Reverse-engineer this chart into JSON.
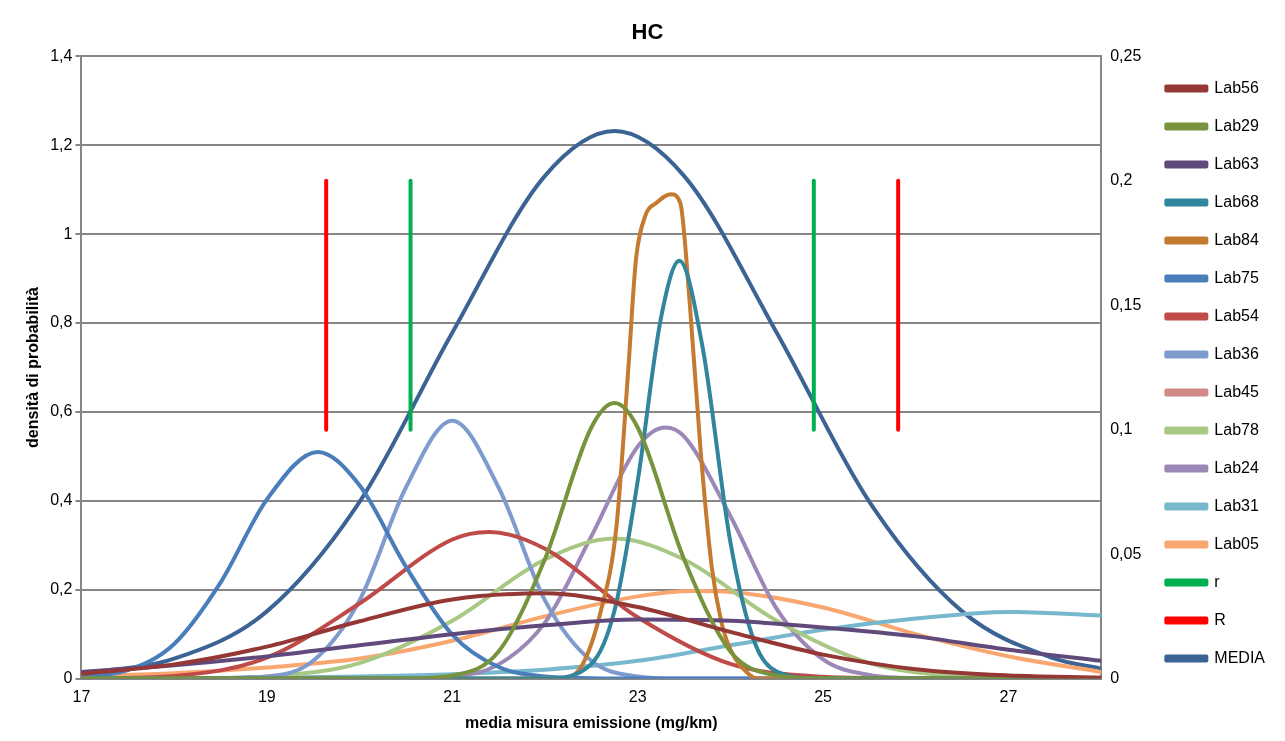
{
  "chart_data": {
    "type": "line",
    "title": "HC",
    "xlabel": "media misura emissione (mg/km)",
    "ylabel": "densità di probabilità",
    "xlim": [
      17,
      28
    ],
    "xticks": [
      17,
      19,
      21,
      23,
      25,
      27
    ],
    "ylim": [
      0,
      1.4
    ],
    "yticks": [
      0,
      {
        "value": 0.2,
        "label": "0,2"
      },
      {
        "value": 0.4,
        "label": "0,4"
      },
      {
        "value": 0.6,
        "label": "0,6"
      },
      {
        "value": 0.8,
        "label": "0,8"
      },
      1,
      {
        "value": 1.2,
        "label": "1,2"
      },
      {
        "value": 1.4,
        "label": "1,4"
      }
    ],
    "y2lim": [
      0,
      0.25
    ],
    "y2ticks": [
      0,
      {
        "value": 0.05,
        "label": "0,05"
      },
      {
        "value": 0.1,
        "label": "0,1"
      },
      {
        "value": 0.15,
        "label": "0,15"
      },
      {
        "value": 0.2,
        "label": "0,2"
      },
      {
        "value": 0.25,
        "label": "0,25"
      }
    ],
    "grid": "y",
    "legend": "right",
    "series": [
      {
        "name": "Lab56",
        "color": "#953735",
        "x": [
          17,
          18,
          19,
          20,
          21,
          22,
          23,
          24,
          25,
          26,
          27,
          28
        ],
        "values": [
          0.011,
          0.032,
          0.072,
          0.129,
          0.178,
          0.192,
          0.161,
          0.105,
          0.054,
          0.021,
          0.007,
          0.002
        ]
      },
      {
        "name": "Lab29",
        "color": "#77933c",
        "x": [
          17,
          20.5,
          21,
          21.5,
          22,
          22.5,
          22.75,
          23,
          23.5,
          24,
          24.5,
          25,
          28
        ],
        "values": [
          0,
          0,
          0.007,
          0.061,
          0.269,
          0.565,
          0.62,
          0.565,
          0.269,
          0.061,
          0.007,
          0,
          0
        ]
      },
      {
        "name": "Lab63",
        "color": "#604a7b",
        "x": [
          17,
          18,
          19,
          20,
          21,
          22,
          23,
          24,
          25,
          26,
          27,
          28
        ],
        "values": [
          0.015,
          0.03,
          0.05,
          0.075,
          0.1,
          0.12,
          0.133,
          0.13,
          0.115,
          0.095,
          0.065,
          0.04
        ]
      },
      {
        "name": "Lab68",
        "color": "#31859c",
        "x": [
          17,
          21,
          22,
          22.5,
          22.75,
          23,
          23.25,
          23.45,
          23.7,
          24,
          24.25,
          24.5,
          25,
          28
        ],
        "values": [
          0,
          0,
          0,
          0.033,
          0.153,
          0.444,
          0.81,
          0.94,
          0.746,
          0.307,
          0.088,
          0.016,
          0,
          0
        ]
      },
      {
        "name": "Lab84",
        "color": "#c47a30",
        "x": [
          17,
          22.2,
          22.4,
          22.6,
          22.77,
          22.9,
          22.98,
          23.08,
          23.2,
          23.36,
          23.46,
          23.56,
          23.68,
          23.8,
          23.9,
          24,
          24.2,
          24.3,
          28
        ],
        "values": [
          0,
          0,
          0.03,
          0.15,
          0.34,
          0.7,
          0.94,
          1.04,
          1.07,
          1.09,
          1.07,
          0.85,
          0.51,
          0.25,
          0.13,
          0.066,
          0.01,
          0,
          0
        ]
      },
      {
        "name": "Lab75",
        "color": "#4a7ebb",
        "x": [
          17,
          17.5,
          18,
          18.5,
          19,
          19.55,
          20,
          20.5,
          21,
          21.5,
          22,
          22.5,
          23,
          28
        ],
        "values": [
          0.003,
          0.019,
          0.078,
          0.216,
          0.403,
          0.51,
          0.435,
          0.252,
          0.099,
          0.026,
          0.005,
          0.001,
          0,
          0
        ]
      },
      {
        "name": "Lab54",
        "color": "#be4b48",
        "x": [
          17,
          18,
          19,
          20,
          21,
          21.4,
          22,
          23,
          24,
          25,
          26,
          27,
          28
        ],
        "values": [
          0,
          0.006,
          0.047,
          0.169,
          0.313,
          0.33,
          0.292,
          0.138,
          0.033,
          0.004,
          0,
          0,
          0
        ]
      },
      {
        "name": "Lab36",
        "color": "#7e9bcd",
        "x": [
          17,
          18,
          19,
          19.5,
          20,
          20.5,
          21,
          21.5,
          22,
          22.5,
          23,
          23.5,
          24,
          28
        ],
        "values": [
          0,
          0,
          0.005,
          0.04,
          0.176,
          0.43,
          0.58,
          0.43,
          0.176,
          0.04,
          0.005,
          0,
          0,
          0
        ]
      },
      {
        "name": "Lab45",
        "color": "#d08a88"
      },
      {
        "name": "Lab78",
        "color": "#a9c883",
        "x": [
          17,
          18,
          19,
          20,
          21,
          22,
          22.75,
          23.5,
          24.5,
          25.5,
          26.5,
          27.5,
          28
        ],
        "values": [
          0,
          0,
          0.005,
          0.035,
          0.13,
          0.268,
          0.315,
          0.268,
          0.13,
          0.035,
          0.005,
          0,
          0
        ]
      },
      {
        "name": "Lab24",
        "color": "#9b88b7",
        "x": [
          17,
          20.5,
          21,
          21.5,
          22,
          22.5,
          23,
          23.3,
          23.5,
          24,
          24.5,
          25,
          25.5,
          26,
          28
        ],
        "values": [
          0,
          0.001,
          0.005,
          0.032,
          0.126,
          0.32,
          0.522,
          0.565,
          0.545,
          0.366,
          0.157,
          0.043,
          0.008,
          0.001,
          0
        ]
      },
      {
        "name": "Lab31",
        "color": "#78b8cf",
        "x": [
          17,
          19,
          20,
          21,
          22,
          23,
          24,
          25,
          26,
          27,
          28
        ],
        "values": [
          0,
          0.002,
          0.005,
          0.01,
          0.02,
          0.04,
          0.075,
          0.11,
          0.135,
          0.15,
          0.142
        ]
      },
      {
        "name": "Lab05",
        "color": "#f9a770",
        "x": [
          17,
          18,
          19,
          20,
          21,
          22,
          23,
          23.6,
          24,
          25,
          26,
          27,
          28
        ],
        "values": [
          0.005,
          0.012,
          0.025,
          0.045,
          0.085,
          0.14,
          0.185,
          0.197,
          0.195,
          0.16,
          0.1,
          0.05,
          0.015
        ]
      },
      {
        "name": "r",
        "color": "#00b050",
        "axis": "y2",
        "x": [
          20.55,
          20.55,
          22.7,
          24.9,
          24.9
        ],
        "values": [
          0.1,
          0.2,
          null,
          0.1,
          0.2
        ]
      },
      {
        "name": "R",
        "color": "#ff0000",
        "axis": "y2",
        "x": [
          19.64,
          19.64,
          22.7,
          25.81,
          25.81
        ],
        "values": [
          0.1,
          0.2,
          null,
          0.1,
          0.2
        ]
      },
      {
        "name": "MEDIA",
        "color": "#3b6494",
        "axis": "y2",
        "x": [
          17,
          18,
          19,
          20,
          21,
          22,
          22.75,
          23.5,
          24.5,
          25.5,
          26.5,
          27.5,
          28
        ],
        "values": [
          0.002,
          0.008,
          0.027,
          0.071,
          0.139,
          0.202,
          0.22,
          0.202,
          0.139,
          0.071,
          0.027,
          0.008,
          0.004
        ]
      }
    ]
  }
}
